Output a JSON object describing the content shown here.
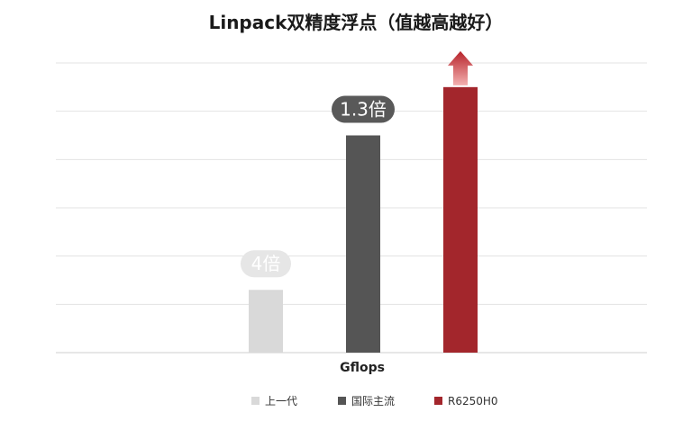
{
  "chart_data": {
    "type": "bar",
    "title": "Linpack双精度浮点（值越高越好）",
    "xlabel": "Gflops",
    "ylabel": "",
    "categories": [
      "上一代",
      "国际主流",
      "R6250H0"
    ],
    "values": [
      13,
      45,
      55
    ],
    "ylim": [
      0,
      60
    ],
    "grid": true,
    "legend_position": "bottom",
    "bar_colors": [
      "#d9d9d9",
      "#555555",
      "#a3262c"
    ],
    "data_labels": [
      "4倍",
      "1.3倍",
      ""
    ],
    "label_colors": [
      "#ffffff",
      "#ffffff",
      "#ffffff"
    ],
    "label_bg": [
      "#e6e6e6",
      "#595959",
      ""
    ],
    "highlight_arrow_series": "R6250H0"
  }
}
